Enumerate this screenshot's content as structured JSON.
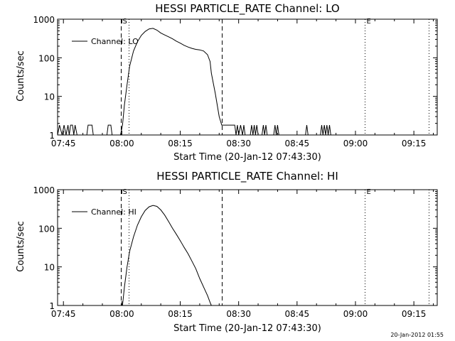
{
  "footer": {
    "timestamp": "20-Jan-2012 01:55"
  },
  "chart_data": [
    {
      "type": "line",
      "title": "HESSI PARTICLE_RATE Channel: LO",
      "xlabel": "Start Time (20-Jan-12 07:43:30)",
      "ylabel": "Counts/sec",
      "ylog": true,
      "xlim": [
        "07:43:30",
        "09:21:00"
      ],
      "ylim": [
        1,
        1000
      ],
      "x_ticks": [
        "07:45",
        "08:00",
        "08:15",
        "08:30",
        "08:45",
        "09:00",
        "09:15"
      ],
      "y_ticks": [
        "1",
        "10",
        "100",
        "1000"
      ],
      "legend": {
        "position": "top-left",
        "entries": [
          "Channel: LO"
        ]
      },
      "markers": [
        {
          "label": "S",
          "time": "07:59:40",
          "style": "dashed"
        },
        {
          "label": "",
          "time": "08:01:45",
          "style": "dotted"
        },
        {
          "label": "",
          "time": "08:25:40",
          "style": "dashed"
        },
        {
          "label": "E",
          "time": "09:02:20",
          "style": "dotted"
        },
        {
          "label": "",
          "time": "09:18:50",
          "style": "dotted"
        }
      ],
      "series": [
        {
          "name": "Channel: LO",
          "points": [
            [
              "07:43:30",
              1
            ],
            [
              "07:44:00",
              1.8
            ],
            [
              "07:44:40",
              1
            ],
            [
              "07:45:10",
              1.8
            ],
            [
              "07:45:40",
              1
            ],
            [
              "07:46:10",
              1.8
            ],
            [
              "07:46:30",
              1
            ],
            [
              "07:46:50",
              1.8
            ],
            [
              "07:47:20",
              1.8
            ],
            [
              "07:47:40",
              1
            ],
            [
              "07:48:00",
              1.8
            ],
            [
              "07:48:30",
              1
            ],
            [
              "07:51:00",
              1
            ],
            [
              "07:51:20",
              1.8
            ],
            [
              "07:52:20",
              1.8
            ],
            [
              "07:52:40",
              1
            ],
            [
              "07:56:10",
              1
            ],
            [
              "07:56:30",
              1.8
            ],
            [
              "07:57:10",
              1.8
            ],
            [
              "07:57:30",
              1
            ],
            [
              "07:59:40",
              1
            ],
            [
              "08:00:10",
              1.8
            ],
            [
              "08:00:40",
              6
            ],
            [
              "08:01:20",
              20
            ],
            [
              "08:02:00",
              60
            ],
            [
              "08:03:00",
              150
            ],
            [
              "08:04:00",
              260
            ],
            [
              "08:05:00",
              380
            ],
            [
              "08:06:00",
              480
            ],
            [
              "08:07:00",
              560
            ],
            [
              "08:08:00",
              580
            ],
            [
              "08:09:00",
              520
            ],
            [
              "08:10:00",
              440
            ],
            [
              "08:11:00",
              390
            ],
            [
              "08:12:00",
              350
            ],
            [
              "08:13:00",
              310
            ],
            [
              "08:14:00",
              270
            ],
            [
              "08:15:00",
              240
            ],
            [
              "08:16:00",
              210
            ],
            [
              "08:17:00",
              190
            ],
            [
              "08:18:00",
              175
            ],
            [
              "08:19:00",
              165
            ],
            [
              "08:20:00",
              160
            ],
            [
              "08:21:00",
              150
            ],
            [
              "08:22:00",
              120
            ],
            [
              "08:22:40",
              80
            ],
            [
              "08:23:00",
              40
            ],
            [
              "08:24:00",
              12
            ],
            [
              "08:25:00",
              3
            ],
            [
              "08:25:40",
              1.8
            ],
            [
              "08:29:00",
              1.8
            ],
            [
              "08:29:20",
              1
            ],
            [
              "08:29:40",
              1.8
            ],
            [
              "08:30:00",
              1
            ],
            [
              "08:30:30",
              1.8
            ],
            [
              "08:31:00",
              1
            ],
            [
              "08:31:20",
              1.8
            ],
            [
              "08:31:40",
              1
            ],
            [
              "08:33:00",
              1
            ],
            [
              "08:33:20",
              1.8
            ],
            [
              "08:33:40",
              1
            ],
            [
              "08:34:00",
              1.8
            ],
            [
              "08:34:20",
              1
            ],
            [
              "08:34:40",
              1.8
            ],
            [
              "08:35:00",
              1
            ],
            [
              "08:36:00",
              1
            ],
            [
              "08:36:20",
              1.8
            ],
            [
              "08:36:40",
              1
            ],
            [
              "08:37:00",
              1.8
            ],
            [
              "08:37:20",
              1
            ],
            [
              "08:39:00",
              1
            ],
            [
              "08:39:20",
              1.8
            ],
            [
              "08:39:40",
              1
            ],
            [
              "08:40:00",
              1.8
            ],
            [
              "08:40:20",
              1
            ],
            [
              "08:47:10",
              1
            ],
            [
              "08:47:30",
              1.8
            ],
            [
              "08:47:50",
              1
            ],
            [
              "08:51:00",
              1
            ],
            [
              "08:51:20",
              1.8
            ],
            [
              "08:51:40",
              1
            ],
            [
              "08:52:00",
              1.8
            ],
            [
              "08:52:20",
              1
            ],
            [
              "08:52:40",
              1.8
            ],
            [
              "08:53:00",
              1
            ],
            [
              "08:53:20",
              1.8
            ],
            [
              "08:53:40",
              1
            ],
            [
              "09:21:00",
              1
            ]
          ]
        }
      ]
    },
    {
      "type": "line",
      "title": "HESSI PARTICLE_RATE Channel: HI",
      "xlabel": "Start Time (20-Jan-12 07:43:30)",
      "ylabel": "Counts/sec",
      "ylog": true,
      "xlim": [
        "07:43:30",
        "09:21:00"
      ],
      "ylim": [
        1,
        1000
      ],
      "x_ticks": [
        "07:45",
        "08:00",
        "08:15",
        "08:30",
        "08:45",
        "09:00",
        "09:15"
      ],
      "y_ticks": [
        "1",
        "10",
        "100",
        "1000"
      ],
      "legend": {
        "position": "top-left",
        "entries": [
          "Channel: HI"
        ]
      },
      "markers": [
        {
          "label": "S",
          "time": "07:59:40",
          "style": "dashed"
        },
        {
          "label": "",
          "time": "08:01:45",
          "style": "dotted"
        },
        {
          "label": "",
          "time": "08:25:40",
          "style": "dashed"
        },
        {
          "label": "E",
          "time": "09:02:20",
          "style": "dotted"
        },
        {
          "label": "",
          "time": "09:18:50",
          "style": "dotted"
        }
      ],
      "series": [
        {
          "name": "Channel: HI",
          "points": [
            [
              "08:00:10",
              1
            ],
            [
              "08:00:40",
              3
            ],
            [
              "08:01:20",
              10
            ],
            [
              "08:02:00",
              25
            ],
            [
              "08:03:00",
              60
            ],
            [
              "08:04:00",
              120
            ],
            [
              "08:05:00",
              200
            ],
            [
              "08:06:00",
              290
            ],
            [
              "08:07:00",
              360
            ],
            [
              "08:08:00",
              390
            ],
            [
              "08:09:00",
              370
            ],
            [
              "08:10:00",
              300
            ],
            [
              "08:11:00",
              220
            ],
            [
              "08:12:00",
              150
            ],
            [
              "08:13:00",
              100
            ],
            [
              "08:14:00",
              70
            ],
            [
              "08:15:00",
              48
            ],
            [
              "08:16:00",
              32
            ],
            [
              "08:17:00",
              22
            ],
            [
              "08:18:00",
              14
            ],
            [
              "08:19:00",
              9
            ],
            [
              "08:20:00",
              5
            ],
            [
              "08:21:00",
              3
            ],
            [
              "08:22:00",
              1.8
            ],
            [
              "08:22:40",
              1.2
            ],
            [
              "08:23:00",
              1
            ]
          ]
        }
      ]
    }
  ]
}
